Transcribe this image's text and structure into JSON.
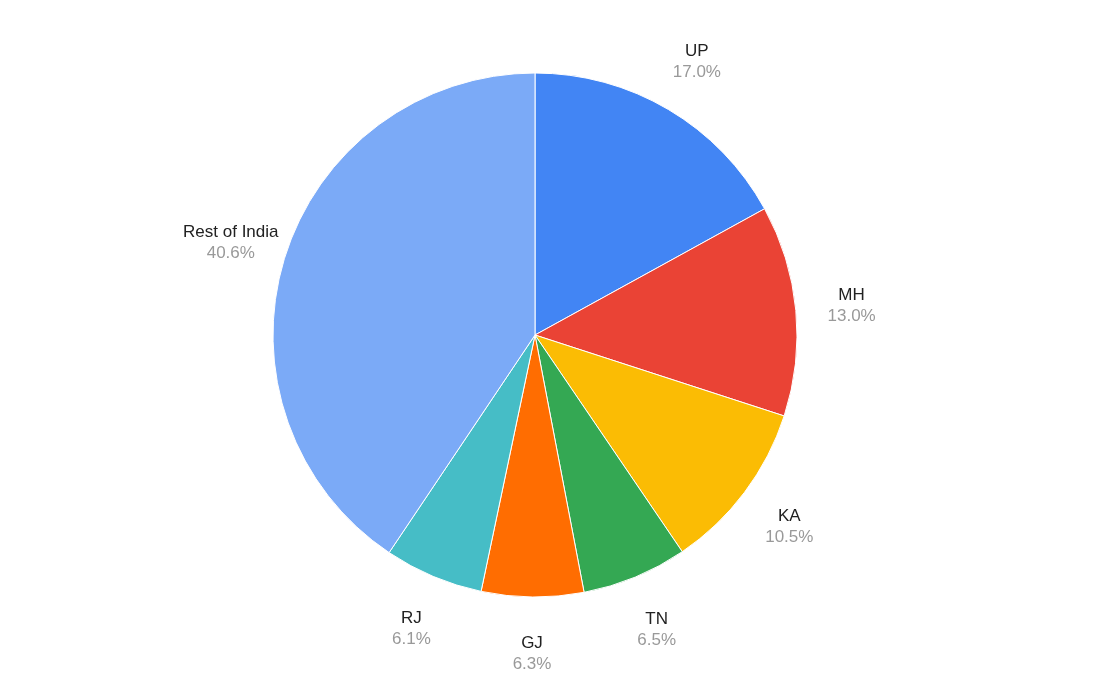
{
  "chart_data": {
    "type": "pie",
    "categories": [
      "UP",
      "MH",
      "KA",
      "TN",
      "GJ",
      "RJ",
      "Rest of India"
    ],
    "values": [
      17.0,
      13.0,
      10.5,
      6.5,
      6.3,
      6.1,
      40.6
    ],
    "colors": [
      "#4285f4",
      "#ea4335",
      "#fbbc04",
      "#34a853",
      "#ff6d01",
      "#46bdc6",
      "#7baaf7"
    ],
    "value_labels": [
      "17.0%",
      "13.0%",
      "10.5%",
      "6.5%",
      "6.3%",
      "6.1%",
      "40.6%"
    ],
    "legend": false
  }
}
